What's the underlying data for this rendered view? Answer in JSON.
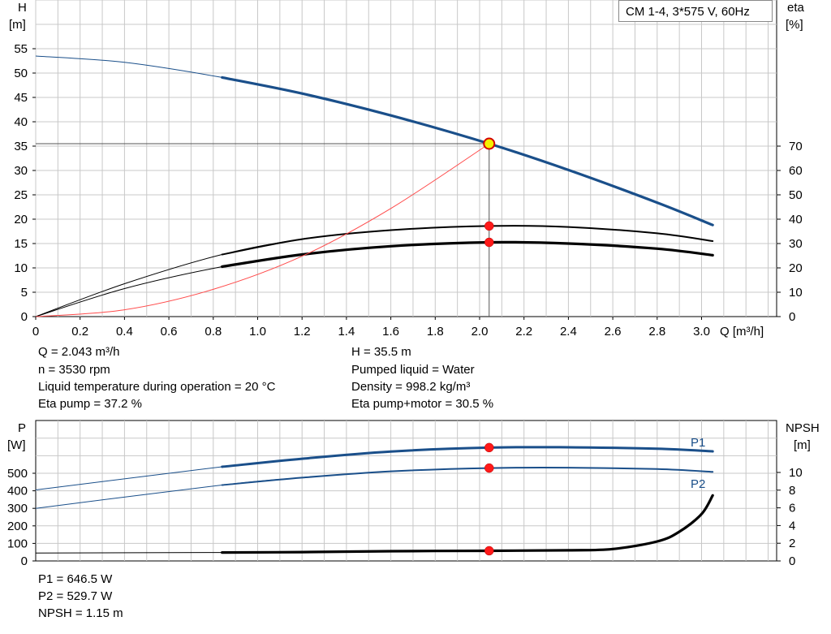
{
  "chart_data": [
    {
      "type": "line",
      "title": "CM 1-4, 3*575 V, 60Hz",
      "xlabel": "Q [m³/h]",
      "ylabel": "H [m]",
      "y2label": "eta [%]",
      "xlim": [
        0,
        3.2
      ],
      "ylim": [
        0,
        55
      ],
      "y2lim": [
        0,
        70
      ],
      "grid": true,
      "x_ticks": [
        "0",
        "0.2",
        "0.4",
        "0.6",
        "0.8",
        "1.0",
        "1.2",
        "1.4",
        "1.6",
        "1.8",
        "2.0",
        "2.2",
        "2.4",
        "2.6",
        "2.8",
        "3.0"
      ],
      "y_ticks": [
        "0",
        "5",
        "10",
        "15",
        "20",
        "25",
        "30",
        "35",
        "40",
        "45",
        "50",
        "55"
      ],
      "y2_ticks": [
        "0",
        "10",
        "20",
        "30",
        "40",
        "50",
        "60",
        "70"
      ],
      "series": [
        {
          "axis": "left",
          "color": "#1a4f8a",
          "x": [
            0,
            0.4,
            0.84,
            1.2,
            1.6,
            2.043,
            2.4,
            2.8,
            3.05
          ],
          "y": [
            53.5,
            52.2,
            49.1,
            45.8,
            41.3,
            35.5,
            30.1,
            23.4,
            18.8
          ]
        },
        {
          "axis": "right",
          "color": "#000000",
          "x": [
            0,
            0.4,
            0.84,
            1.2,
            1.6,
            2.043,
            2.4,
            2.8,
            3.05
          ],
          "y": [
            0,
            13.5,
            25.5,
            31.8,
            35.5,
            37.2,
            36.8,
            34.2,
            31.0
          ]
        },
        {
          "axis": "right",
          "color": "#000000",
          "x": [
            0,
            0.4,
            0.84,
            1.2,
            1.6,
            2.043,
            2.4,
            2.8,
            3.05
          ],
          "y": [
            0,
            11.5,
            20.5,
            25.5,
            28.9,
            30.5,
            30.0,
            27.9,
            25.2
          ]
        },
        {
          "axis": "left",
          "color": "#ff4a4a",
          "x": [
            0,
            0.4,
            0.8,
            1.2,
            1.6,
            2.043
          ],
          "y": [
            0,
            1.4,
            5.6,
            12.4,
            22.2,
            35.5
          ]
        }
      ],
      "duty_point": {
        "x": 2.043,
        "y": 35.5
      },
      "marker_points": [
        {
          "axis": "right",
          "x": 2.043,
          "y": 37.2
        },
        {
          "axis": "right",
          "x": 2.043,
          "y": 30.5
        }
      ]
    },
    {
      "type": "line",
      "ylabel": "P [W]",
      "y2label": "NPSH [m]",
      "xlim": [
        0,
        3.2
      ],
      "ylim": [
        0,
        700
      ],
      "y2lim": [
        0,
        14
      ],
      "grid": true,
      "y_ticks": [
        "0",
        "100",
        "200",
        "300",
        "400",
        "500"
      ],
      "y2_ticks": [
        "0",
        "2",
        "4",
        "6",
        "8",
        "10"
      ],
      "series": [
        {
          "name": "P1",
          "axis": "left",
          "color": "#1a4f8a",
          "x": [
            0,
            0.84,
            1.2,
            1.6,
            2.043,
            2.4,
            2.8,
            3.05
          ],
          "y": [
            405,
            537,
            583,
            624,
            646.5,
            648,
            640,
            625
          ]
        },
        {
          "name": "P2",
          "axis": "left",
          "color": "#1a4f8a",
          "x": [
            0,
            0.84,
            1.2,
            1.6,
            2.043,
            2.4,
            2.8,
            3.05
          ],
          "y": [
            300,
            433,
            475,
            511,
            529.7,
            532,
            524,
            508
          ]
        },
        {
          "axis": "right",
          "color": "#000000",
          "x": [
            0,
            0.84,
            1.2,
            1.6,
            2.043,
            2.4,
            2.6,
            2.8,
            2.9,
            3.0,
            3.05
          ],
          "y": [
            0.9,
            0.95,
            1.0,
            1.1,
            1.15,
            1.2,
            1.35,
            2.2,
            3.3,
            5.3,
            7.4
          ]
        }
      ],
      "marker_points": [
        {
          "axis": "left",
          "x": 2.043,
          "y": 646.5
        },
        {
          "axis": "left",
          "x": 2.043,
          "y": 529.7
        },
        {
          "axis": "right",
          "x": 2.043,
          "y": 1.15
        }
      ]
    }
  ],
  "labels": {
    "h_axis": "H",
    "h_unit": "[m]",
    "eta_axis": "eta",
    "eta_unit": "[%]",
    "p_axis": "P",
    "p_unit": "[W]",
    "npsh_axis": "NPSH",
    "npsh_unit": "[m]",
    "q_axis": "Q [m³/h]",
    "p1": "P1",
    "p2": "P2"
  },
  "info_top": {
    "q": "Q = 2.043 m³/h",
    "n": "n = 3530 rpm",
    "temp": "Liquid temperature during operation = 20 °C",
    "eta_pump": "Eta pump = 37.2 %",
    "h": "H = 35.5 m",
    "liquid": "Pumped liquid = Water",
    "density": "Density = 998.2 kg/m³",
    "eta_pm": "Eta pump+motor = 30.5 %"
  },
  "info_bottom": {
    "p1": "P1 = 646.5 W",
    "p2": "P2 = 529.7 W",
    "npsh": "NPSH = 1.15 m"
  }
}
